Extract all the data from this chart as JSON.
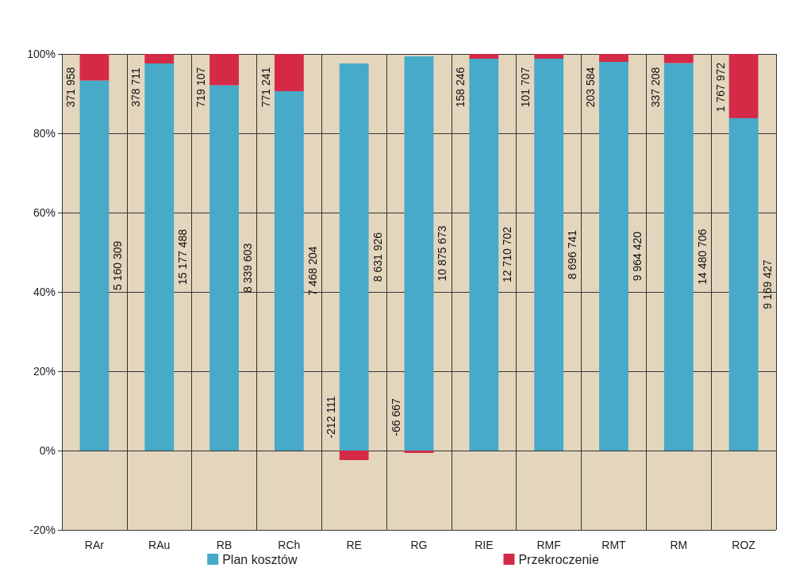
{
  "chart_data": {
    "type": "bar",
    "stacked": true,
    "categories": [
      "RAr",
      "RAu",
      "RB",
      "RCh",
      "RE",
      "RG",
      "RIE",
      "RMF",
      "RMT",
      "RM",
      "ROZ"
    ],
    "series": [
      {
        "name": "Plan kosztów",
        "color": "#46aac8",
        "values": [
          93.3,
          97.6,
          92.1,
          90.6,
          97.6,
          99.4,
          98.8,
          98.8,
          98.0,
          97.7,
          83.8
        ]
      },
      {
        "name": "Przekroczenie",
        "color": "#d42a48",
        "values": [
          6.7,
          2.4,
          7.9,
          9.4,
          -2.4,
          -0.6,
          1.2,
          1.2,
          2.0,
          2.3,
          16.2
        ]
      }
    ],
    "annotations": [
      "5 160 309",
      "371 958",
      "15 177 488",
      "378 711",
      "8 339 603",
      "719 107",
      "7 468 204",
      "771 241",
      "8 631 926",
      "-212 111",
      "10 875 673",
      "-66 667",
      "12 710 702",
      "158 246",
      "8 696 741",
      "101 707",
      "9 964 420",
      "203 584",
      "14 480 706",
      "337 208",
      "9 169 427",
      "1 767 972"
    ],
    "ylim": [
      -20,
      100
    ],
    "yticks": [
      {
        "value": -20,
        "label": "-20%"
      },
      {
        "value": 0,
        "label": "0%"
      },
      {
        "value": 20,
        "label": "20%"
      },
      {
        "value": 40,
        "label": "40%"
      },
      {
        "value": 60,
        "label": "60%"
      },
      {
        "value": 80,
        "label": "80%"
      },
      {
        "value": 100,
        "label": "100%"
      }
    ],
    "grid": true,
    "legend": "bottom"
  }
}
